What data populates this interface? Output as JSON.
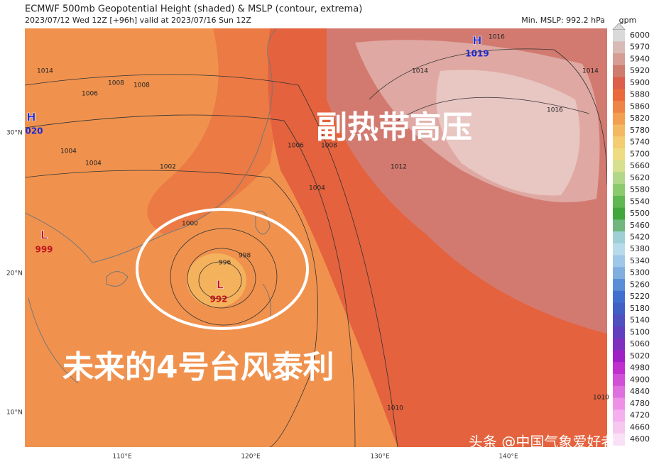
{
  "header": {
    "title": "ECMWF 500mb Geopotential Height (shaded) & MSLP (contour, extrema)",
    "subtitle": "2023/07/12 Wed 12Z [+96h] valid at 2023/07/16 Sun 12Z",
    "min_mslp": "Min. MSLP: 992.2 hPa"
  },
  "colorbar": {
    "unit": "gpm",
    "labels": [
      6000,
      5970,
      5940,
      5920,
      5900,
      5880,
      5860,
      5820,
      5780,
      5740,
      5700,
      5660,
      5620,
      5580,
      5540,
      5500,
      5460,
      5420,
      5380,
      5340,
      5300,
      5260,
      5220,
      5180,
      5140,
      5100,
      5060,
      5020,
      4980,
      4900,
      4840,
      4780,
      4720,
      4660,
      4600
    ],
    "colors": [
      "#d9d9d9",
      "#d8bbb6",
      "#d69d94",
      "#cf7b6d",
      "#dc5f4c",
      "#ea6a3c",
      "#ef8447",
      "#f39f52",
      "#f5b862",
      "#f4cc72",
      "#eedc82",
      "#d6e08f",
      "#b3d789",
      "#8bcb6b",
      "#5fb74f",
      "#41a73b",
      "#6fb77e",
      "#9fcfd6",
      "#b7dbeb",
      "#9fc7e7",
      "#7faedf",
      "#588fd6",
      "#4070cf",
      "#4060c6",
      "#5050bf",
      "#6040bf",
      "#8030bf",
      "#a020c6",
      "#c030cf",
      "#d050d7",
      "#df70df",
      "#ef90e7",
      "#f4b0ef",
      "#f7c8ef",
      "#fae0f7"
    ]
  },
  "axes": {
    "lat": [
      "30°N",
      "20°N",
      "10°N"
    ],
    "lon": [
      "110°E",
      "120°E",
      "130°E",
      "140°E"
    ]
  },
  "extrema": [
    {
      "label": "H",
      "value": "1019"
    },
    {
      "label": "H",
      "value": "020"
    },
    {
      "label": "L",
      "value": "999"
    },
    {
      "label": "L",
      "value": "992"
    }
  ],
  "contour_labels": [
    "1014",
    "1006",
    "1008",
    "1008",
    "1004",
    "1004",
    "1002",
    "1000",
    "998",
    "996",
    "1006",
    "1004",
    "1008",
    "1012",
    "1014",
    "1016",
    "1014",
    "1016",
    "1010",
    "1010"
  ],
  "overlay": {
    "subtropical_high": "副热带高压",
    "typhoon": "未来的4号台风泰利",
    "watermark": "头条 @中国气象爱好者"
  }
}
